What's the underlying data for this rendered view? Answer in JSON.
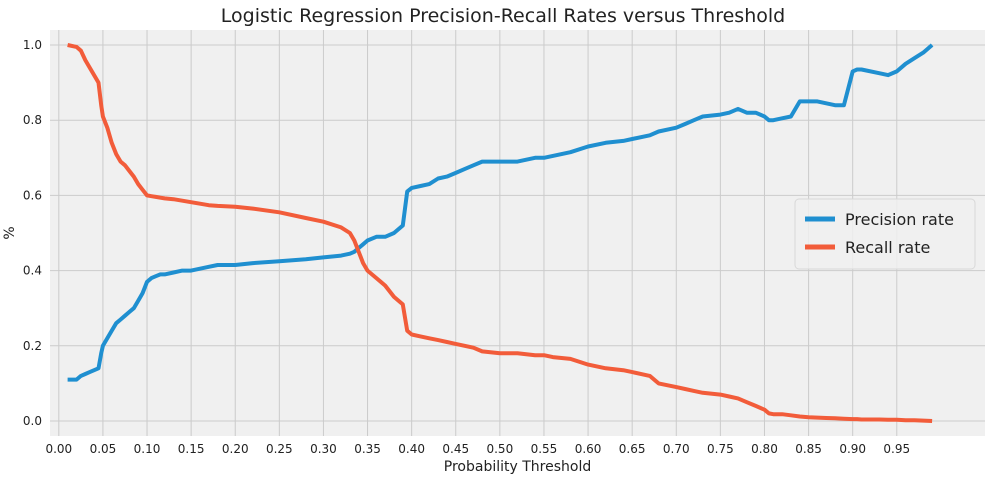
{
  "chart_data": {
    "type": "line",
    "title": "Logistic Regression Precision-Recall Rates versus Threshold",
    "xlabel": "Probability Threshold",
    "ylabel": "%",
    "xlim": [
      -0.01,
      1.05
    ],
    "ylim": [
      -0.04,
      1.04
    ],
    "x_ticks": [
      "0.00",
      "0.05",
      "0.10",
      "0.15",
      "0.20",
      "0.25",
      "0.30",
      "0.35",
      "0.40",
      "0.45",
      "0.50",
      "0.55",
      "0.60",
      "0.65",
      "0.70",
      "0.75",
      "0.80",
      "0.85",
      "0.90",
      "0.95"
    ],
    "y_ticks": [
      "0.0",
      "0.2",
      "0.4",
      "0.6",
      "0.8",
      "1.0"
    ],
    "grid": true,
    "legend_position": "center-right",
    "background_color": "#f0f0f0",
    "series": [
      {
        "name": "Precision rate",
        "color": "#1f8fd0",
        "x": [
          0.01,
          0.02,
          0.025,
          0.03,
          0.035,
          0.04,
          0.045,
          0.048,
          0.05,
          0.055,
          0.06,
          0.065,
          0.07,
          0.075,
          0.08,
          0.085,
          0.09,
          0.095,
          0.1,
          0.105,
          0.11,
          0.115,
          0.12,
          0.13,
          0.14,
          0.15,
          0.16,
          0.17,
          0.18,
          0.2,
          0.22,
          0.25,
          0.28,
          0.3,
          0.32,
          0.33,
          0.335,
          0.34,
          0.345,
          0.35,
          0.36,
          0.37,
          0.38,
          0.39,
          0.395,
          0.4,
          0.41,
          0.42,
          0.43,
          0.44,
          0.45,
          0.46,
          0.47,
          0.48,
          0.5,
          0.52,
          0.54,
          0.55,
          0.56,
          0.58,
          0.6,
          0.62,
          0.64,
          0.65,
          0.67,
          0.68,
          0.7,
          0.71,
          0.72,
          0.73,
          0.75,
          0.76,
          0.77,
          0.78,
          0.79,
          0.8,
          0.805,
          0.81,
          0.82,
          0.83,
          0.84,
          0.85,
          0.86,
          0.87,
          0.88,
          0.89,
          0.9,
          0.905,
          0.91,
          0.93,
          0.94,
          0.95,
          0.96,
          0.97,
          0.98,
          0.99
        ],
        "y": [
          0.11,
          0.11,
          0.12,
          0.125,
          0.13,
          0.135,
          0.14,
          0.18,
          0.2,
          0.22,
          0.24,
          0.26,
          0.27,
          0.28,
          0.29,
          0.3,
          0.32,
          0.34,
          0.37,
          0.38,
          0.385,
          0.39,
          0.39,
          0.395,
          0.4,
          0.4,
          0.405,
          0.41,
          0.415,
          0.415,
          0.42,
          0.425,
          0.43,
          0.435,
          0.44,
          0.445,
          0.45,
          0.46,
          0.47,
          0.48,
          0.49,
          0.49,
          0.5,
          0.52,
          0.61,
          0.62,
          0.625,
          0.63,
          0.645,
          0.65,
          0.66,
          0.67,
          0.68,
          0.69,
          0.69,
          0.69,
          0.7,
          0.7,
          0.705,
          0.715,
          0.73,
          0.74,
          0.745,
          0.75,
          0.76,
          0.77,
          0.78,
          0.79,
          0.8,
          0.81,
          0.815,
          0.82,
          0.83,
          0.82,
          0.82,
          0.81,
          0.8,
          0.8,
          0.805,
          0.81,
          0.85,
          0.85,
          0.85,
          0.845,
          0.84,
          0.84,
          0.93,
          0.935,
          0.935,
          0.925,
          0.92,
          0.93,
          0.95,
          0.965,
          0.98,
          1.0
        ]
      },
      {
        "name": "Recall rate",
        "color": "#f25c3a",
        "x": [
          0.01,
          0.02,
          0.025,
          0.03,
          0.035,
          0.04,
          0.045,
          0.048,
          0.05,
          0.055,
          0.06,
          0.065,
          0.07,
          0.075,
          0.08,
          0.085,
          0.09,
          0.095,
          0.1,
          0.105,
          0.11,
          0.115,
          0.12,
          0.13,
          0.14,
          0.15,
          0.16,
          0.17,
          0.18,
          0.2,
          0.22,
          0.25,
          0.28,
          0.3,
          0.32,
          0.33,
          0.335,
          0.34,
          0.345,
          0.35,
          0.36,
          0.37,
          0.38,
          0.39,
          0.395,
          0.4,
          0.41,
          0.42,
          0.43,
          0.44,
          0.45,
          0.46,
          0.47,
          0.48,
          0.5,
          0.52,
          0.54,
          0.55,
          0.56,
          0.58,
          0.6,
          0.62,
          0.64,
          0.65,
          0.67,
          0.68,
          0.7,
          0.71,
          0.72,
          0.73,
          0.75,
          0.76,
          0.77,
          0.78,
          0.79,
          0.8,
          0.805,
          0.81,
          0.82,
          0.83,
          0.84,
          0.85,
          0.86,
          0.87,
          0.88,
          0.89,
          0.9,
          0.905,
          0.91,
          0.93,
          0.94,
          0.95,
          0.96,
          0.97,
          0.98,
          0.99
        ],
        "y": [
          1.0,
          0.995,
          0.985,
          0.96,
          0.94,
          0.92,
          0.9,
          0.84,
          0.81,
          0.78,
          0.74,
          0.71,
          0.69,
          0.68,
          0.665,
          0.65,
          0.63,
          0.615,
          0.6,
          0.598,
          0.596,
          0.594,
          0.592,
          0.59,
          0.586,
          0.582,
          0.578,
          0.574,
          0.572,
          0.57,
          0.565,
          0.555,
          0.54,
          0.53,
          0.515,
          0.5,
          0.48,
          0.45,
          0.42,
          0.4,
          0.38,
          0.36,
          0.33,
          0.31,
          0.24,
          0.23,
          0.225,
          0.22,
          0.215,
          0.21,
          0.205,
          0.2,
          0.195,
          0.185,
          0.18,
          0.18,
          0.175,
          0.175,
          0.17,
          0.165,
          0.15,
          0.14,
          0.135,
          0.13,
          0.12,
          0.1,
          0.09,
          0.085,
          0.08,
          0.075,
          0.07,
          0.065,
          0.06,
          0.05,
          0.04,
          0.03,
          0.02,
          0.018,
          0.018,
          0.015,
          0.012,
          0.01,
          0.009,
          0.008,
          0.007,
          0.006,
          0.005,
          0.005,
          0.004,
          0.004,
          0.003,
          0.003,
          0.002,
          0.002,
          0.001,
          0.0
        ]
      }
    ]
  }
}
